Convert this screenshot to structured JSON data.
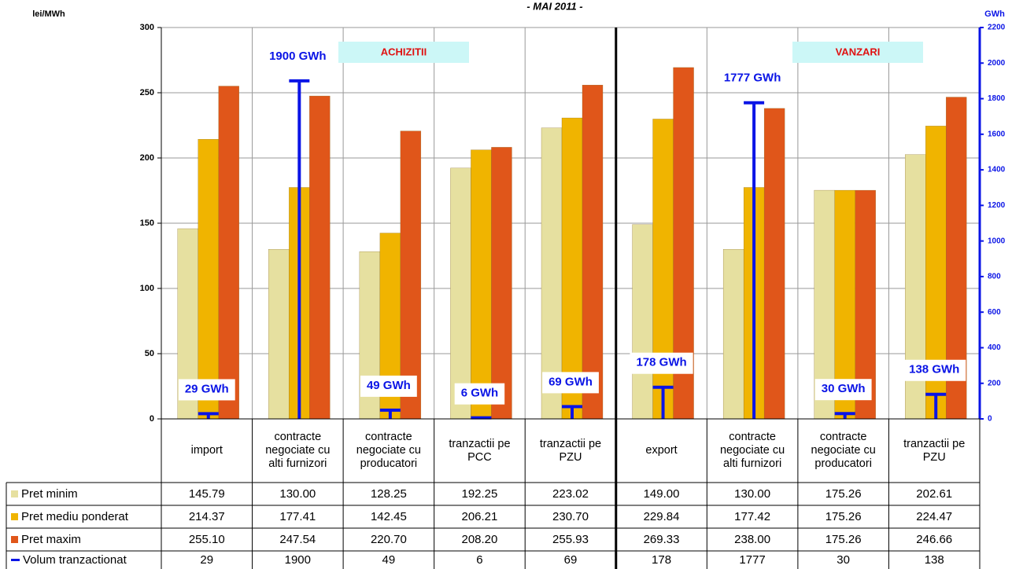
{
  "chart_data": {
    "type": "bar",
    "title": "- MAI 2011 -",
    "y_label": "lei/MWh",
    "y2_label": "GWh",
    "annotations": [
      "ACHIZITII",
      "VANZARI"
    ],
    "categories": [
      "import",
      "contracte negociate cu alti furnizori",
      "contracte negociate cu producatori",
      "tranzactii pe PCC",
      "tranzactii pe PZU",
      "export",
      "contracte negociate cu alti furnizori",
      "contracte negociate cu producatori",
      "tranzactii pe PZU"
    ],
    "series": [
      {
        "name": "Pret minim",
        "color": "#e6e0a0",
        "values": [
          145.79,
          130,
          128.25,
          192.25,
          223.02,
          149,
          130,
          175.26,
          202.61
        ],
        "value_labels": [
          "145.79",
          "130.00",
          "128.25",
          "192.25",
          "223.02",
          "149.00",
          "130.00",
          "175.26",
          "202.61"
        ]
      },
      {
        "name": "Pret mediu ponderat",
        "color": "#f0b400",
        "values": [
          214.37,
          177.41,
          142.45,
          206.21,
          230.7,
          229.84,
          177.42,
          175.26,
          224.47
        ],
        "value_labels": [
          "214.37",
          "177.41",
          "142.45",
          "206.21",
          "230.70",
          "229.84",
          "177.42",
          "175.26",
          "224.47"
        ]
      },
      {
        "name": "Pret maxim",
        "color": "#e0561a",
        "values": [
          255.1,
          247.54,
          220.7,
          208.2,
          255.93,
          269.33,
          238,
          175.26,
          246.66
        ],
        "value_labels": [
          "255.10",
          "247.54",
          "220.70",
          "208.20",
          "255.93",
          "269.33",
          "238.00",
          "175.26",
          "246.66"
        ]
      },
      {
        "name": "Volum tranzactionat",
        "color": "#0a14e6",
        "axis": "y2",
        "values": [
          29,
          1900,
          49,
          6,
          69,
          178,
          1777,
          30,
          138
        ],
        "value_labels": [
          "29 GWh",
          "1900 GWh",
          "49 GWh",
          "6 GWh",
          "69 GWh",
          "178 GWh",
          "1777 GWh",
          "30 GWh",
          "138 GWh"
        ]
      }
    ],
    "ylim": [
      0,
      300
    ],
    "yticks": [
      0,
      50,
      100,
      150,
      200,
      250,
      300
    ],
    "y2lim": [
      0,
      2200
    ],
    "y2ticks": [
      0,
      200,
      400,
      600,
      800,
      1000,
      1200,
      1400,
      1600,
      1800,
      2000,
      2200
    ],
    "grid": true
  }
}
